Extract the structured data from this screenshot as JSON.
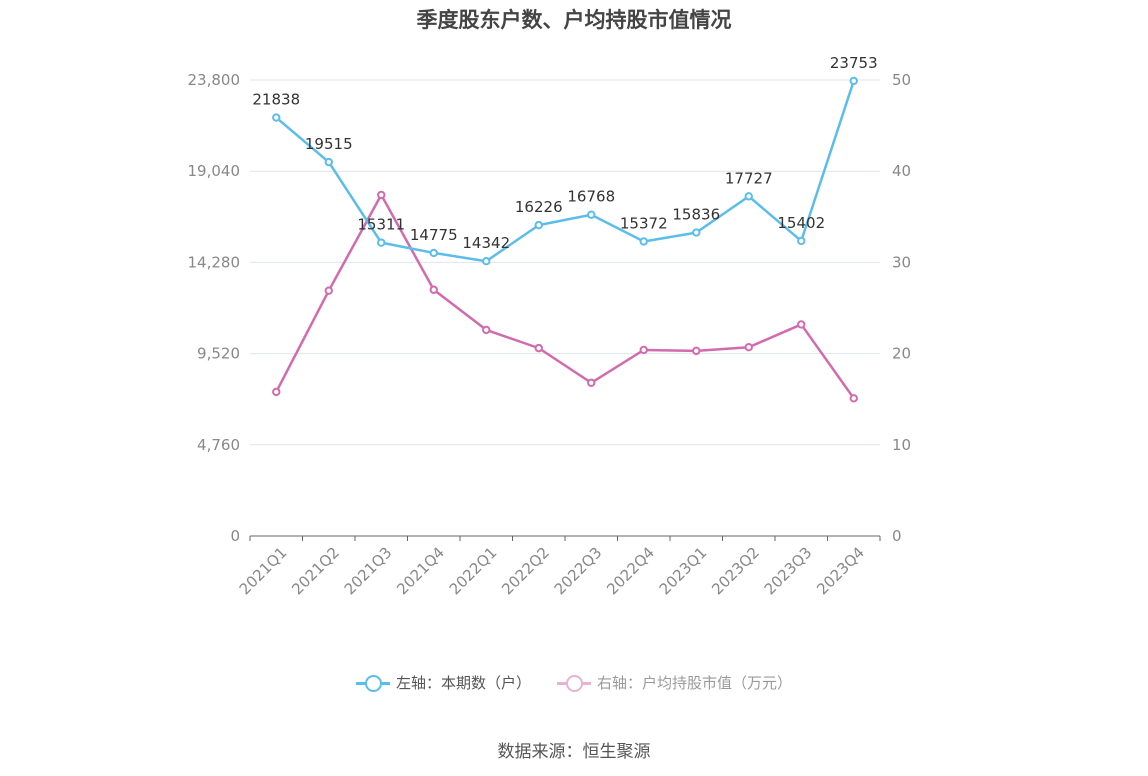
{
  "chart_data": {
    "type": "line",
    "title": "季度股东户数、户均持股市值情况",
    "categories": [
      "2021Q1",
      "2021Q2",
      "2021Q3",
      "2021Q4",
      "2022Q1",
      "2022Q2",
      "2022Q3",
      "2022Q4",
      "2023Q1",
      "2023Q2",
      "2023Q3",
      "2023Q4"
    ],
    "left_axis": {
      "min": 0,
      "max": 23800,
      "ticks": [
        "0",
        "4,760",
        "9,520",
        "14,280",
        "19,040",
        "23,800"
      ]
    },
    "right_axis": {
      "min": 0,
      "max": 50,
      "ticks": [
        "0",
        "10",
        "20",
        "30",
        "40",
        "50"
      ]
    },
    "grid": true,
    "legend_position": "bottom",
    "series": [
      {
        "name": "左轴：本期数（户）",
        "axis": "left",
        "color": "#5bbdeb",
        "values": [
          21838,
          19515,
          15311,
          14775,
          14342,
          16226,
          16768,
          15372,
          15836,
          17727,
          15402,
          23753
        ],
        "labels": [
          "21838",
          "19515",
          "15311",
          "14775",
          "14342",
          "16226",
          "16768",
          "15372",
          "15836",
          "17727",
          "15402",
          "23753"
        ]
      },
      {
        "name": "右轴：户均持股市值（万元）",
        "axis": "right",
        "color": "#d36aae",
        "values": [
          15.8,
          26.9,
          37.4,
          27.0,
          22.6,
          20.6,
          16.8,
          20.4,
          20.3,
          20.7,
          23.2,
          15.1
        ]
      }
    ]
  },
  "legend": {
    "left_label": "左轴：本期数（户）",
    "right_label": "右轴：户均持股市值（万元）"
  },
  "source": "数据来源：恒生聚源"
}
